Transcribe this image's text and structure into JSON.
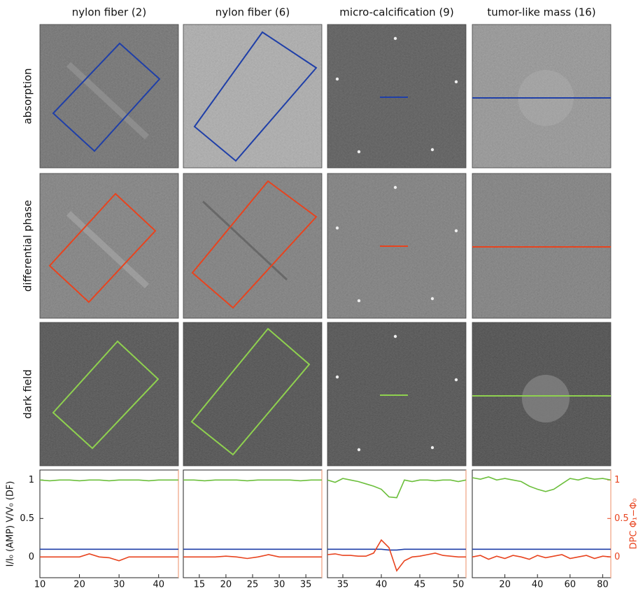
{
  "rows": [
    "absorption",
    "differential phase",
    "dark field"
  ],
  "chart_data": [
    {
      "type": "line",
      "title": "nylon fiber (2)",
      "ylabel": "I/I₀ (AMP) V/V₀ (DF)",
      "x": [
        10,
        12.5,
        15,
        17.5,
        20,
        22.5,
        25,
        27.5,
        30,
        32.5,
        35,
        37.5,
        40,
        42.5,
        45
      ],
      "xlim": [
        10,
        45
      ],
      "xticks": [
        10,
        20,
        30,
        40
      ],
      "ylim": [
        -0.27,
        1.13
      ],
      "yticks": [
        0,
        0.5,
        1
      ],
      "y2lim": [
        -0.27,
        1.13
      ],
      "series": [
        {
          "color": "#6cbf3c",
          "values": [
            1.0,
            0.99,
            1.0,
            1.0,
            0.99,
            1.0,
            1.0,
            0.99,
            1.0,
            1.0,
            1.0,
            0.99,
            1.0,
            1.0,
            1.0
          ]
        },
        {
          "color": "#1f3fa8",
          "values": [
            0.1,
            0.1,
            0.1,
            0.1,
            0.1,
            0.1,
            0.1,
            0.1,
            0.1,
            0.1,
            0.1,
            0.1,
            0.1,
            0.1,
            0.1
          ]
        },
        {
          "color": "#e8431e",
          "axis": "y2",
          "values": [
            0.0,
            0.0,
            0.0,
            0.0,
            0.0,
            0.04,
            0.0,
            -0.01,
            -0.05,
            0.0,
            0.0,
            0.0,
            0.0,
            0.0,
            0.0
          ]
        }
      ]
    },
    {
      "type": "line",
      "title": "nylon fiber (6)",
      "x": [
        12,
        14,
        16,
        18,
        20,
        22,
        24,
        26,
        28,
        30,
        32,
        34,
        36,
        38
      ],
      "xlim": [
        12,
        38
      ],
      "xticks": [
        15,
        20,
        25,
        30,
        35
      ],
      "ylim": [
        -0.27,
        1.13
      ],
      "y2lim": [
        -0.27,
        1.13
      ],
      "series": [
        {
          "color": "#6cbf3c",
          "values": [
            1.0,
            1.0,
            0.99,
            1.0,
            1.0,
            1.0,
            0.99,
            1.0,
            1.0,
            1.0,
            1.0,
            0.99,
            1.0,
            1.0
          ]
        },
        {
          "color": "#1f3fa8",
          "values": [
            0.1,
            0.1,
            0.1,
            0.1,
            0.1,
            0.1,
            0.1,
            0.1,
            0.1,
            0.1,
            0.1,
            0.1,
            0.1,
            0.1
          ]
        },
        {
          "color": "#e8431e",
          "axis": "y2",
          "values": [
            0.0,
            0.0,
            0.0,
            0.0,
            0.01,
            0.0,
            -0.02,
            0.0,
            0.03,
            0.0,
            0.0,
            0.0,
            0.0,
            0.0
          ]
        }
      ]
    },
    {
      "type": "line",
      "title": "micro-calcification (9)",
      "x": [
        33,
        34,
        35,
        36,
        37,
        38,
        39,
        40,
        41,
        42,
        43,
        44,
        45,
        46,
        47,
        48,
        49,
        50,
        51
      ],
      "xlim": [
        33,
        51
      ],
      "xticks": [
        35,
        40,
        45,
        50
      ],
      "ylim": [
        -0.27,
        1.13
      ],
      "y2lim": [
        -0.27,
        1.13
      ],
      "series": [
        {
          "color": "#6cbf3c",
          "values": [
            1.0,
            0.97,
            1.02,
            1.0,
            0.98,
            0.95,
            0.92,
            0.88,
            0.78,
            0.77,
            1.0,
            0.98,
            1.0,
            1.0,
            0.99,
            1.0,
            1.0,
            0.98,
            1.0
          ]
        },
        {
          "color": "#1f3fa8",
          "values": [
            0.1,
            0.1,
            0.1,
            0.1,
            0.1,
            0.1,
            0.1,
            0.1,
            0.09,
            0.09,
            0.1,
            0.1,
            0.1,
            0.1,
            0.1,
            0.1,
            0.1,
            0.1,
            0.1
          ]
        },
        {
          "color": "#e8431e",
          "axis": "y2",
          "values": [
            0.03,
            0.04,
            0.02,
            0.02,
            0.01,
            0.01,
            0.05,
            0.22,
            0.12,
            -0.18,
            -0.05,
            0.0,
            0.01,
            0.03,
            0.05,
            0.02,
            0.01,
            0.0,
            0.0
          ]
        }
      ]
    },
    {
      "type": "line",
      "title": "tumor-like mass (16)",
      "y2label": "DPC  Φ₁−Φ₀",
      "x": [
        0,
        5,
        10,
        15,
        20,
        25,
        30,
        35,
        40,
        45,
        50,
        55,
        60,
        65,
        70,
        75,
        80,
        85
      ],
      "xlim": [
        0,
        85
      ],
      "xticks": [
        20,
        40,
        60,
        80
      ],
      "ylim": [
        -0.27,
        1.13
      ],
      "y2lim": [
        -0.27,
        1.13
      ],
      "y2ticks": [
        0,
        0.5,
        1
      ],
      "series": [
        {
          "color": "#6cbf3c",
          "values": [
            1.03,
            1.01,
            1.04,
            1.0,
            1.02,
            1.0,
            0.98,
            0.92,
            0.88,
            0.85,
            0.88,
            0.95,
            1.02,
            1.0,
            1.03,
            1.01,
            1.02,
            1.0
          ]
        },
        {
          "color": "#1f3fa8",
          "values": [
            0.1,
            0.1,
            0.1,
            0.1,
            0.1,
            0.1,
            0.1,
            0.1,
            0.1,
            0.1,
            0.1,
            0.1,
            0.1,
            0.1,
            0.1,
            0.1,
            0.1,
            0.1
          ]
        },
        {
          "color": "#e8431e",
          "axis": "y2",
          "values": [
            0.0,
            0.02,
            -0.03,
            0.01,
            -0.02,
            0.02,
            0.0,
            -0.03,
            0.02,
            -0.01,
            0.01,
            0.03,
            -0.02,
            0.0,
            0.02,
            -0.02,
            0.01,
            0.0
          ]
        }
      ]
    }
  ]
}
